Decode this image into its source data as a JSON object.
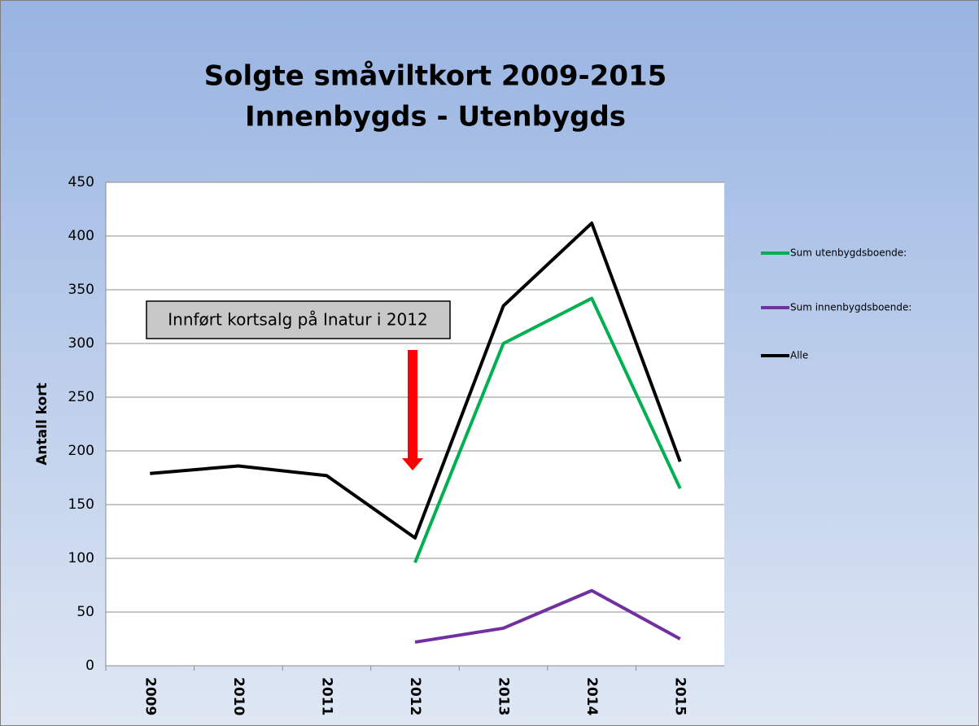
{
  "chart_data": {
    "type": "line",
    "title": "Solgte småviltkort 2009-2015",
    "subtitle": "Innenbygds - Utenbygds",
    "y_label": "Antall kort",
    "annotation": "Innført kortsalg på Inatur i 2012",
    "categories": [
      "2009",
      "2010",
      "2011",
      "2012",
      "2013",
      "2014",
      "2015"
    ],
    "series": [
      {
        "name": "Sum utenbygdsboende:",
        "color": "#00b050",
        "values": [
          null,
          null,
          null,
          96,
          300,
          342,
          165
        ]
      },
      {
        "name": "Sum innenbygdsboende:",
        "color": "#7030a0",
        "values": [
          null,
          null,
          null,
          22,
          35,
          70,
          25
        ]
      },
      {
        "name": "Alle",
        "color": "#000000",
        "values": [
          179,
          186,
          177,
          119,
          335,
          412,
          190
        ]
      }
    ],
    "ylim": [
      0,
      450
    ],
    "yticks": [
      0,
      50,
      100,
      150,
      200,
      250,
      300,
      350,
      400,
      450
    ],
    "grid": true,
    "legend": "right"
  }
}
